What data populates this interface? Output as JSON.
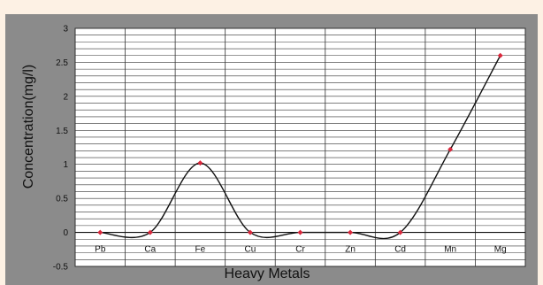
{
  "chart_data": {
    "type": "line",
    "title": "",
    "xlabel": "Heavy Metals",
    "ylabel": "Concentration(mg/l)",
    "categories": [
      "Pb",
      "Ca",
      "Fe",
      "Cu",
      "Cr",
      "Zn",
      "Cd",
      "Mn",
      "Mg"
    ],
    "series": [
      {
        "values": [
          0,
          0,
          1.02,
          0,
          0,
          0,
          0,
          1.22,
          2.6
        ]
      }
    ],
    "ylim": [
      -0.5,
      3
    ],
    "yticks": [
      -0.5,
      0,
      0.5,
      1,
      1.5,
      2,
      2.5,
      3
    ],
    "ytick_labels": [
      "-0.5",
      "0",
      "0.5",
      "1",
      "1.5",
      "2",
      "2.5",
      "3"
    ],
    "smooth": true,
    "grid": true,
    "legend": "none",
    "colors": {
      "line": "#111111",
      "marker": "#d9283c",
      "plot_background": "#ffffff",
      "chart_background": "#8b8b8b",
      "page_background": "#fdf1e4",
      "grid": "#333333"
    }
  }
}
